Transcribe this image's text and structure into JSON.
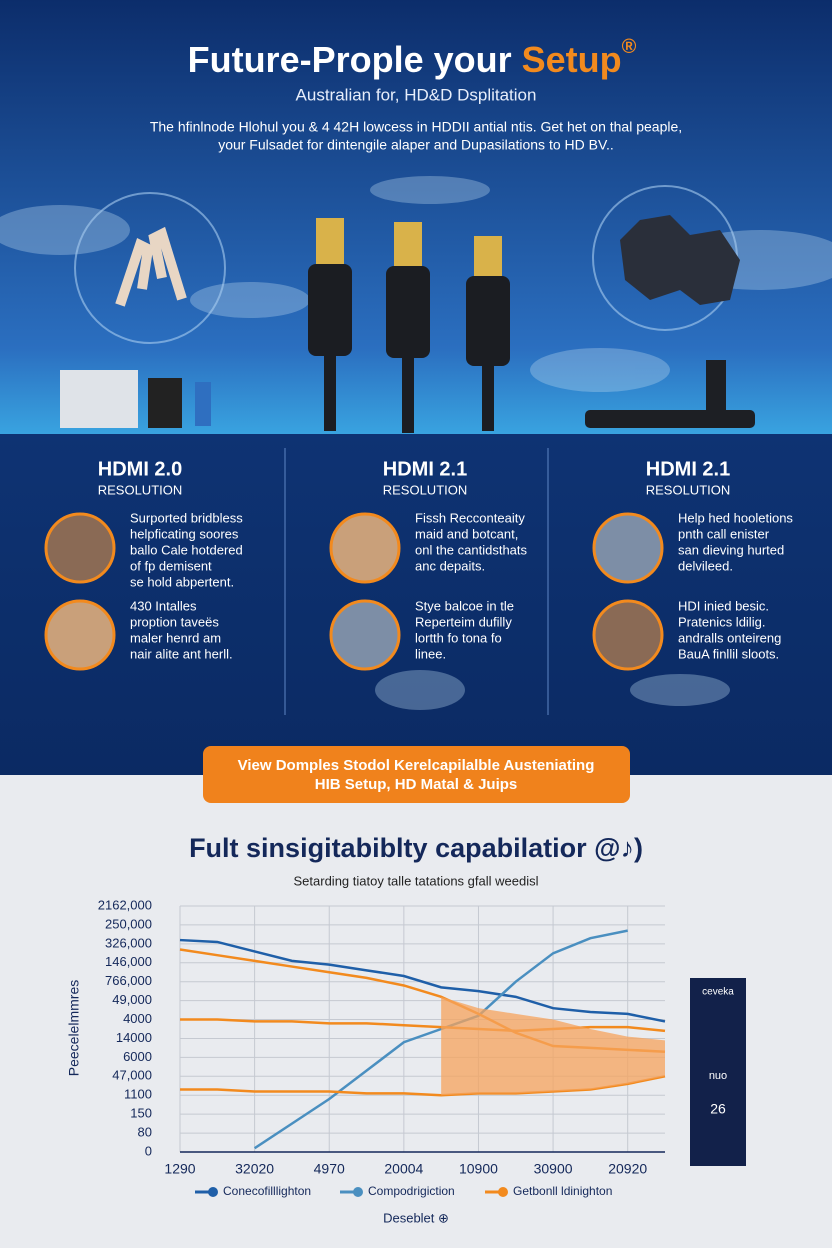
{
  "header": {
    "title_main": "Future-Prople your ",
    "title_accent": "Setup",
    "title_mark": "®",
    "subtitle": "Australian for, HD&D Dsplitation",
    "intro": [
      "The hfinlnode Hlohul you & 4 42H lowcess in HDDII antial ntis. Get het on thal peaple,",
      "your Fulsadet for dintengile alaper and Dupasilations to HD BV.."
    ]
  },
  "columns": [
    {
      "heading": "HDMI 2.0",
      "sub": "RESOLUTION",
      "items": [
        {
          "lines": [
            "Surported bridbless",
            "helpficating soores",
            "ballo Cale hotdered",
            "of fp demisent",
            "se hold abpertent."
          ]
        },
        {
          "lines": [
            "430 Intalles",
            "proption taveës",
            "maler henrd am",
            "nair alite ant herll."
          ]
        }
      ]
    },
    {
      "heading": "HDMI 2.1",
      "sub": "RESOLUTION",
      "items": [
        {
          "lines": [
            "Fissh Recconteaity",
            "maid and botcant,",
            "onl the cantidsthats",
            "anc depaits."
          ]
        },
        {
          "lines": [
            "Stye balcoe in tle",
            "Reperteim dufilly",
            "lortth fo tona fo",
            "linee."
          ]
        }
      ]
    },
    {
      "heading": "HDMI 2.1",
      "sub": "RESOLUTION",
      "items": [
        {
          "lines": [
            "Help hed hooletions",
            "pnth call enister",
            "san dieving hurted",
            "delvileed."
          ]
        },
        {
          "lines": [
            "HDI inied besic.",
            "Pratenics ldilig.",
            "andralls onteireng",
            "BauA finllil sloots."
          ]
        }
      ]
    }
  ],
  "cta": [
    "View Domples Stodol Kerelcapilalble Austeniating",
    "HIB Setup, HD Matal & Juips"
  ],
  "chart_data": {
    "type": "line",
    "title": "Fult sinsigitabiblty capabilatior @♪)",
    "subtitle": "Setarding tiatoy talle tatations gfall weedisl",
    "y_label": "Peecelelmmres",
    "x": [
      0,
      0.5,
      1,
      1.5,
      2,
      2.5,
      3,
      3.5,
      4,
      4.5,
      5,
      5.5,
      6,
      6.5
    ],
    "xlim": [
      0,
      6.5
    ],
    "xticks": [
      {
        "value": 0,
        "label": "1290"
      },
      {
        "value": 1,
        "label": "32020"
      },
      {
        "value": 2,
        "label": "4970"
      },
      {
        "value": 3,
        "label": "20004"
      },
      {
        "value": 4,
        "label": "10900"
      },
      {
        "value": 5,
        "label": "30900"
      },
      {
        "value": 6,
        "label": "20920"
      }
    ],
    "ylim": [
      0,
      13
    ],
    "yticks": [
      0,
      {
        "value": 1,
        "label": "80"
      },
      {
        "value": 2,
        "label": "150"
      },
      {
        "value": 3,
        "label": "1100"
      },
      {
        "value": 4,
        "label": "47,000"
      },
      {
        "value": 5,
        "label": "6000"
      },
      {
        "value": 6,
        "label": "14000"
      },
      {
        "value": 7,
        "label": "4000"
      },
      {
        "value": 8,
        "label": "49,000"
      },
      {
        "value": 9,
        "label": "766,000"
      },
      {
        "value": 10,
        "label": "146,000"
      },
      {
        "value": 11,
        "label": "326,000"
      },
      {
        "value": 12,
        "label": "250,000"
      },
      {
        "value": 13,
        "label": "2162,000"
      }
    ],
    "grid": true,
    "series": [
      {
        "name": "Conecofilllighton",
        "color": "#1f5fa8",
        "values": [
          11.2,
          11.1,
          10.6,
          10.1,
          9.9,
          9.6,
          9.3,
          8.7,
          8.5,
          8.2,
          7.6,
          7.4,
          7.3,
          6.9
        ]
      },
      {
        "name": "Compodrigiction",
        "color": "#4a8fc0",
        "values": [
          null,
          null,
          0.2,
          1.5,
          2.8,
          4.3,
          5.8,
          6.5,
          7.2,
          9.0,
          10.5,
          11.3,
          11.7,
          null
        ]
      },
      {
        "name": "Getbonll ldinighton",
        "color": "#f28a1e",
        "values": [
          10.7,
          10.4,
          10.1,
          9.8,
          9.5,
          9.2,
          8.8,
          8.2,
          7.3,
          6.3,
          5.6,
          5.5,
          5.4,
          5.3
        ]
      },
      {
        "color": "#f28a1e",
        "values": [
          7.0,
          7.0,
          6.9,
          6.9,
          6.8,
          6.8,
          6.7,
          6.6,
          6.5,
          6.4,
          6.5,
          6.6,
          6.6,
          6.4
        ]
      },
      {
        "color": "#f28a1e",
        "values": [
          3.3,
          3.3,
          3.2,
          3.2,
          3.2,
          3.1,
          3.1,
          3.0,
          3.1,
          3.1,
          3.2,
          3.3,
          3.6,
          4.0
        ]
      },
      {
        "color": "#f5a35c",
        "area": true,
        "values": [
          null,
          null,
          null,
          null,
          null,
          null,
          null,
          8.2,
          7.6,
          7.3,
          7.0,
          6.5,
          6.1,
          5.9
        ]
      }
    ]
  },
  "side_panel": [
    "ceveka",
    "26",
    "nuo"
  ],
  "footer": "Deseblet ⊕"
}
